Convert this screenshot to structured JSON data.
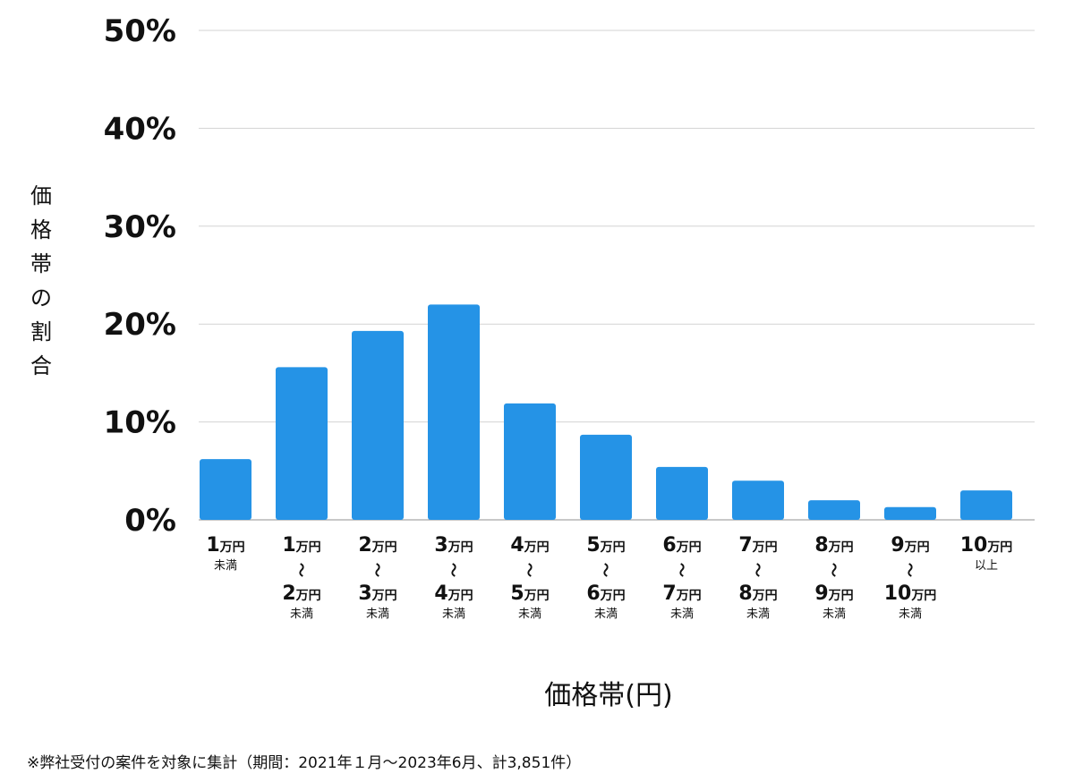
{
  "chart_data": {
    "type": "bar",
    "xlabel": "価格帯(円)",
    "ylabel": "価格帯の割合",
    "footnote": "※弊社受付の案件を対象に集計（期間：2021年１月〜2023年6月、計3,851件）",
    "ylim": [
      0,
      50
    ],
    "yticks": [
      "0%",
      "10%",
      "20%",
      "30%",
      "40%",
      "50%"
    ],
    "ytick_values": [
      0,
      10,
      20,
      30,
      40,
      50
    ],
    "grid": true,
    "bar_color": "#2593e6",
    "categories": [
      {
        "lines": [
          {
            "num": "1",
            "unit": "万円"
          }
        ],
        "sub": "未満"
      },
      {
        "lines": [
          {
            "num": "1",
            "unit": "万円"
          },
          {
            "num": "2",
            "unit": "万円"
          }
        ],
        "tilde": "〜",
        "sub": "未満"
      },
      {
        "lines": [
          {
            "num": "2",
            "unit": "万円"
          },
          {
            "num": "3",
            "unit": "万円"
          }
        ],
        "tilde": "〜",
        "sub": "未満"
      },
      {
        "lines": [
          {
            "num": "3",
            "unit": "万円"
          },
          {
            "num": "4",
            "unit": "万円"
          }
        ],
        "tilde": "〜",
        "sub": "未満"
      },
      {
        "lines": [
          {
            "num": "4",
            "unit": "万円"
          },
          {
            "num": "5",
            "unit": "万円"
          }
        ],
        "tilde": "〜",
        "sub": "未満"
      },
      {
        "lines": [
          {
            "num": "5",
            "unit": "万円"
          },
          {
            "num": "6",
            "unit": "万円"
          }
        ],
        "tilde": "〜",
        "sub": "未満"
      },
      {
        "lines": [
          {
            "num": "6",
            "unit": "万円"
          },
          {
            "num": "7",
            "unit": "万円"
          }
        ],
        "tilde": "〜",
        "sub": "未満"
      },
      {
        "lines": [
          {
            "num": "7",
            "unit": "万円"
          },
          {
            "num": "8",
            "unit": "万円"
          }
        ],
        "tilde": "〜",
        "sub": "未満"
      },
      {
        "lines": [
          {
            "num": "8",
            "unit": "万円"
          },
          {
            "num": "9",
            "unit": "万円"
          }
        ],
        "tilde": "〜",
        "sub": "未満"
      },
      {
        "lines": [
          {
            "num": "9",
            "unit": "万円"
          },
          {
            "num": "10",
            "unit": "万円"
          }
        ],
        "tilde": "〜",
        "sub": "未満"
      },
      {
        "lines": [
          {
            "num": "10",
            "unit": "万円"
          }
        ],
        "sub": "以上"
      }
    ],
    "values": [
      6.2,
      15.6,
      19.3,
      22.0,
      11.9,
      8.7,
      5.4,
      4.0,
      2.0,
      1.3,
      3.0
    ]
  }
}
